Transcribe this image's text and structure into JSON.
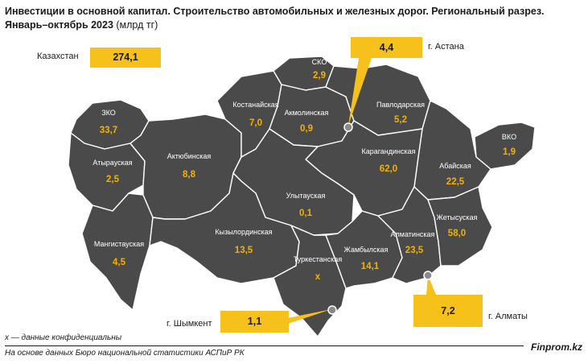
{
  "title": {
    "bold": "Инвестиции в основной капитал. Строительство автомобильных и железных дорог. Региональный разрез. Январь–октябрь 2023",
    "unit": " (млрд тг)"
  },
  "total": {
    "label": "Казахстан",
    "value": "274,1"
  },
  "cities": [
    {
      "label": "г. Астана",
      "value": "4,4"
    },
    {
      "label": "г. Шымкент",
      "value": "1,1"
    },
    {
      "label": "г. Алматы",
      "value": "7,2"
    }
  ],
  "regions": [
    {
      "name": "ЗКО",
      "value": "33,7"
    },
    {
      "name": "Атырауская",
      "value": "2,5"
    },
    {
      "name": "Мангистауская",
      "value": "4,5"
    },
    {
      "name": "Актюбинская",
      "value": "8,8"
    },
    {
      "name": "Костанайская",
      "value": "7,0"
    },
    {
      "name": "СКО",
      "value": "2,9"
    },
    {
      "name": "Акмолинская",
      "value": "0,9"
    },
    {
      "name": "Павлодарская",
      "value": "5,2"
    },
    {
      "name": "ВКО",
      "value": "1,9"
    },
    {
      "name": "Абайская",
      "value": "22,5"
    },
    {
      "name": "Карагандинская",
      "value": "62,0"
    },
    {
      "name": "Улытауская",
      "value": "0,1"
    },
    {
      "name": "Кызылординская",
      "value": "13,5"
    },
    {
      "name": "Туркестанская",
      "value": "x"
    },
    {
      "name": "Жамбылская",
      "value": "14,1"
    },
    {
      "name": "Алматинская",
      "value": "23,5"
    },
    {
      "name": "Жетысуская",
      "value": "58,0"
    }
  ],
  "colors": {
    "region_fill": "#4a4a4a",
    "value_text": "#f2b200",
    "callout": "#f5c11a"
  },
  "footnote": "x — данные конфиденциальны",
  "source": "На основе данных Бюро национальной статистики АСПиР РК",
  "brand": "Finprom.kz"
}
